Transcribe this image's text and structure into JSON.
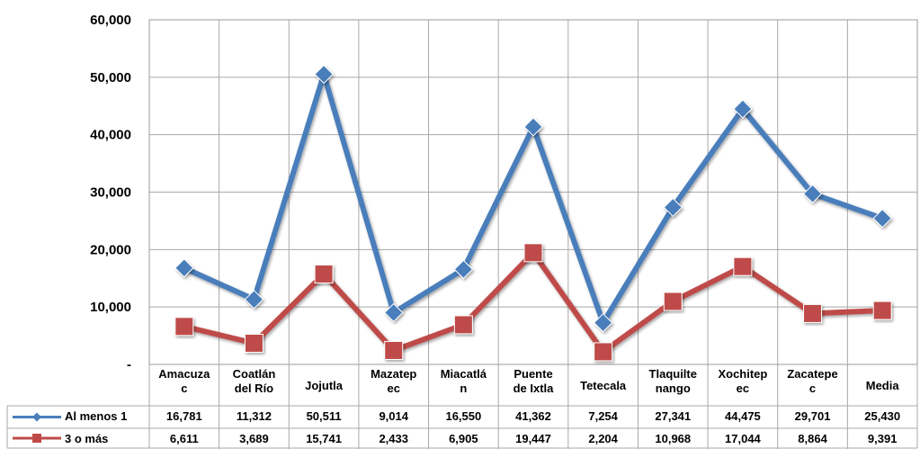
{
  "chart_data": {
    "type": "line",
    "categories": [
      [
        "Amacuza",
        "c"
      ],
      [
        "Coatlán",
        "del Río"
      ],
      [
        "Jojutla"
      ],
      [
        "Mazatep",
        "ec"
      ],
      [
        "Miacatlá",
        "n"
      ],
      [
        "Puente",
        "de Ixtla"
      ],
      [
        "Tetecala"
      ],
      [
        "Tlaquilte",
        "nango"
      ],
      [
        "Xochitep",
        "ec"
      ],
      [
        "Zacatepe",
        "c"
      ],
      [
        "Media"
      ]
    ],
    "series": [
      {
        "name": "Al menos 1",
        "color": "#4a7ebb",
        "marker": "diamond",
        "values": [
          16781,
          11312,
          50511,
          9014,
          16550,
          41362,
          7254,
          27341,
          44475,
          29701,
          25430
        ],
        "labels": [
          "16,781",
          "11,312",
          "50,511",
          "9,014",
          "16,550",
          "41,362",
          "7,254",
          "27,341",
          "44,475",
          "29,701",
          "25,430"
        ]
      },
      {
        "name": "3 o más",
        "color": "#be4b48",
        "marker": "square",
        "values": [
          6611,
          3689,
          15741,
          2433,
          6905,
          19447,
          2204,
          10968,
          17044,
          8864,
          9391
        ],
        "labels": [
          "6,611",
          "3,689",
          "15,741",
          "2,433",
          "6,905",
          "19,447",
          "2,204",
          "10,968",
          "17,044",
          "8,864",
          "9,391"
        ]
      }
    ],
    "yticks": [
      "-",
      "10,000",
      "20,000",
      "30,000",
      "40,000",
      "50,000",
      "60,000"
    ],
    "ylim": [
      0,
      60000
    ],
    "grid": true,
    "legend": "data-table"
  }
}
